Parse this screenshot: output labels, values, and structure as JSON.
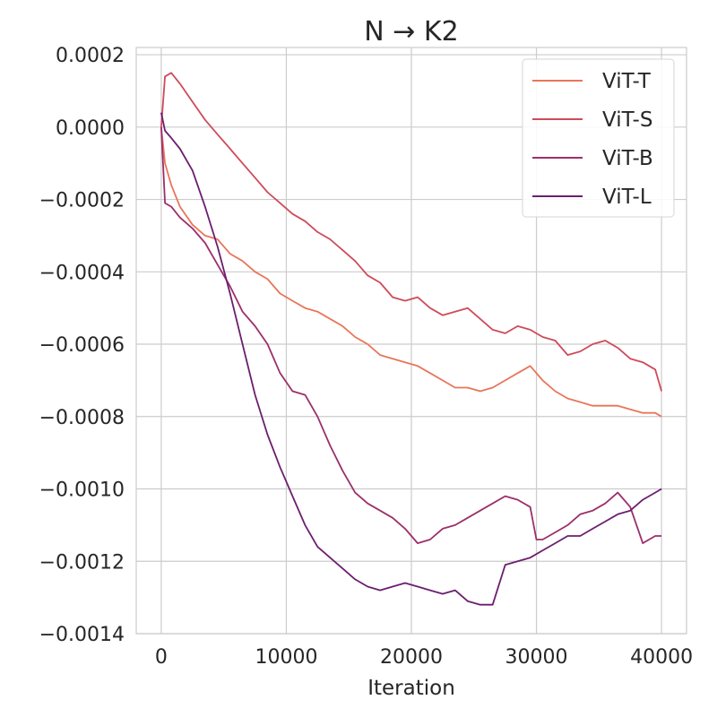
{
  "chart_data": {
    "type": "line",
    "title": "N → K2",
    "xlabel": "Iteration",
    "ylabel": "",
    "xlim": [
      -2000,
      42000
    ],
    "ylim": [
      -0.0014,
      0.00022
    ],
    "grid": true,
    "legend_position": "top-right",
    "x_ticks": [
      0,
      10000,
      20000,
      30000,
      40000
    ],
    "x_tick_labels": [
      "0",
      "10000",
      "20000",
      "30000",
      "40000"
    ],
    "y_ticks": [
      0.0002,
      0.0,
      -0.0002,
      -0.0004,
      -0.0006,
      -0.0008,
      -0.001,
      -0.0012,
      -0.0014
    ],
    "y_tick_labels": [
      "0.0002",
      "0.0000",
      "−0.0002",
      "−0.0004",
      "−0.0006",
      "−0.0008",
      "−0.0010",
      "−0.0012",
      "−0.0014"
    ],
    "series": [
      {
        "name": "ViT-T",
        "color": "#e8765a",
        "x": [
          0,
          300,
          800,
          1500,
          2500,
          3500,
          4500,
          5500,
          6500,
          7500,
          8500,
          9500,
          10500,
          11500,
          12500,
          13500,
          14500,
          15500,
          16500,
          17500,
          18500,
          19500,
          20500,
          21500,
          22500,
          23500,
          24500,
          25500,
          26500,
          27500,
          28500,
          29500,
          30500,
          31500,
          32500,
          33500,
          34500,
          35500,
          36500,
          37500,
          38500,
          39500,
          40000
        ],
        "y": [
          0.0,
          -0.0001,
          -0.00016,
          -0.00022,
          -0.00027,
          -0.0003,
          -0.00031,
          -0.00035,
          -0.00037,
          -0.0004,
          -0.00042,
          -0.00046,
          -0.00048,
          -0.0005,
          -0.00051,
          -0.00053,
          -0.00055,
          -0.00058,
          -0.0006,
          -0.00063,
          -0.00064,
          -0.00065,
          -0.00066,
          -0.00068,
          -0.0007,
          -0.00072,
          -0.00072,
          -0.00073,
          -0.00072,
          -0.0007,
          -0.00068,
          -0.00066,
          -0.0007,
          -0.00073,
          -0.00075,
          -0.00076,
          -0.00077,
          -0.00077,
          -0.00077,
          -0.00078,
          -0.00079,
          -0.00079,
          -0.0008
        ]
      },
      {
        "name": "ViT-S",
        "color": "#cf4a5a",
        "x": [
          0,
          300,
          800,
          1500,
          2500,
          3500,
          4500,
          5500,
          6500,
          7500,
          8500,
          9500,
          10500,
          11500,
          12500,
          13500,
          14500,
          15500,
          16500,
          17500,
          18500,
          19500,
          20500,
          21500,
          22500,
          23500,
          24500,
          25500,
          26500,
          27500,
          28500,
          29500,
          30500,
          31500,
          32500,
          33500,
          34500,
          35500,
          36500,
          37500,
          38500,
          39500,
          40000
        ],
        "y": [
          0.0,
          0.00014,
          0.00015,
          0.00012,
          7e-05,
          2e-05,
          -2e-05,
          -6e-05,
          -0.0001,
          -0.00014,
          -0.00018,
          -0.00021,
          -0.00024,
          -0.00026,
          -0.00029,
          -0.00031,
          -0.00034,
          -0.00037,
          -0.00041,
          -0.00043,
          -0.00047,
          -0.00048,
          -0.00047,
          -0.0005,
          -0.00052,
          -0.00051,
          -0.0005,
          -0.00053,
          -0.00056,
          -0.00057,
          -0.00055,
          -0.00056,
          -0.00058,
          -0.00059,
          -0.00063,
          -0.00062,
          -0.0006,
          -0.00059,
          -0.00061,
          -0.00064,
          -0.00065,
          -0.00067,
          -0.00073
        ]
      },
      {
        "name": "ViT-B",
        "color": "#9c2f6a",
        "x": [
          0,
          300,
          800,
          1500,
          2500,
          3500,
          4500,
          5500,
          6500,
          7500,
          8500,
          9500,
          10500,
          11500,
          12500,
          13500,
          14500,
          15500,
          16500,
          17500,
          18500,
          19500,
          20500,
          21500,
          22500,
          23500,
          24500,
          25500,
          26500,
          27500,
          28500,
          29500,
          30000,
          30500,
          31500,
          32500,
          33500,
          34500,
          35500,
          36500,
          37500,
          38500,
          39500,
          40000
        ],
        "y": [
          0.0,
          -0.00021,
          -0.00022,
          -0.00025,
          -0.00028,
          -0.00032,
          -0.00038,
          -0.00044,
          -0.00051,
          -0.00055,
          -0.0006,
          -0.00068,
          -0.00073,
          -0.00074,
          -0.0008,
          -0.00088,
          -0.00095,
          -0.00101,
          -0.00104,
          -0.00106,
          -0.00108,
          -0.00111,
          -0.00115,
          -0.00114,
          -0.00111,
          -0.0011,
          -0.00108,
          -0.00106,
          -0.00104,
          -0.00102,
          -0.00103,
          -0.00105,
          -0.00114,
          -0.00114,
          -0.00112,
          -0.0011,
          -0.00107,
          -0.00106,
          -0.00104,
          -0.00101,
          -0.00105,
          -0.00115,
          -0.00113,
          -0.00113
        ]
      },
      {
        "name": "ViT-L",
        "color": "#6b1f6e",
        "x": [
          0,
          300,
          800,
          1500,
          2500,
          3500,
          4500,
          5500,
          6500,
          7500,
          8500,
          9500,
          10500,
          11500,
          12500,
          13500,
          14500,
          15500,
          16500,
          17500,
          18500,
          19500,
          20500,
          21500,
          22500,
          23500,
          24500,
          25500,
          26500,
          27500,
          28500,
          29500,
          30500,
          31500,
          32500,
          33500,
          34500,
          35500,
          36500,
          37500,
          38500,
          39500,
          40000
        ],
        "y": [
          4e-05,
          -1e-05,
          -3e-05,
          -6e-05,
          -0.00012,
          -0.00022,
          -0.00033,
          -0.00046,
          -0.0006,
          -0.00074,
          -0.00085,
          -0.00094,
          -0.00102,
          -0.0011,
          -0.00116,
          -0.00119,
          -0.00122,
          -0.00125,
          -0.00127,
          -0.00128,
          -0.00127,
          -0.00126,
          -0.00127,
          -0.00128,
          -0.00129,
          -0.00128,
          -0.00131,
          -0.00132,
          -0.00132,
          -0.00121,
          -0.0012,
          -0.00119,
          -0.00117,
          -0.00115,
          -0.00113,
          -0.00113,
          -0.00111,
          -0.00109,
          -0.00107,
          -0.00106,
          -0.00103,
          -0.00101,
          -0.001
        ]
      }
    ]
  }
}
